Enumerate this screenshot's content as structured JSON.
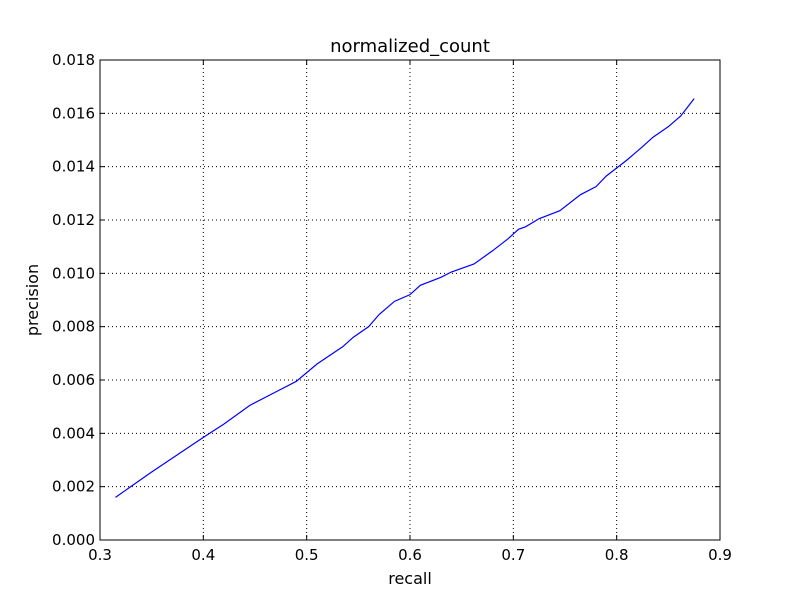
{
  "chart_data": {
    "type": "line",
    "title": "normalized_count",
    "xlabel": "recall",
    "ylabel": "precision",
    "xlim": [
      0.3,
      0.9
    ],
    "ylim": [
      0.0,
      0.018
    ],
    "grid": true,
    "x_ticks": [
      "0.3",
      "0.4",
      "0.5",
      "0.6",
      "0.7",
      "0.8",
      "0.9"
    ],
    "y_ticks": [
      "0.000",
      "0.002",
      "0.004",
      "0.006",
      "0.008",
      "0.010",
      "0.012",
      "0.014",
      "0.016",
      "0.018"
    ],
    "series": [
      {
        "color": "#0000ff",
        "points": [
          [
            0.315,
            0.0016
          ],
          [
            0.35,
            0.00255
          ],
          [
            0.4,
            0.00385
          ],
          [
            0.42,
            0.00435
          ],
          [
            0.445,
            0.00505
          ],
          [
            0.47,
            0.00555
          ],
          [
            0.49,
            0.00595
          ],
          [
            0.51,
            0.0066
          ],
          [
            0.535,
            0.00725
          ],
          [
            0.545,
            0.0076
          ],
          [
            0.56,
            0.008
          ],
          [
            0.57,
            0.00845
          ],
          [
            0.585,
            0.00895
          ],
          [
            0.6,
            0.0092
          ],
          [
            0.61,
            0.00955
          ],
          [
            0.63,
            0.00985
          ],
          [
            0.64,
            0.01005
          ],
          [
            0.662,
            0.01035
          ],
          [
            0.68,
            0.01085
          ],
          [
            0.695,
            0.0113
          ],
          [
            0.705,
            0.01165
          ],
          [
            0.712,
            0.01175
          ],
          [
            0.725,
            0.01205
          ],
          [
            0.745,
            0.01235
          ],
          [
            0.765,
            0.01295
          ],
          [
            0.78,
            0.01325
          ],
          [
            0.79,
            0.01365
          ],
          [
            0.8,
            0.01395
          ],
          [
            0.81,
            0.01425
          ],
          [
            0.825,
            0.01475
          ],
          [
            0.835,
            0.0151
          ],
          [
            0.85,
            0.0155
          ],
          [
            0.862,
            0.0159
          ],
          [
            0.875,
            0.01655
          ]
        ]
      }
    ]
  }
}
